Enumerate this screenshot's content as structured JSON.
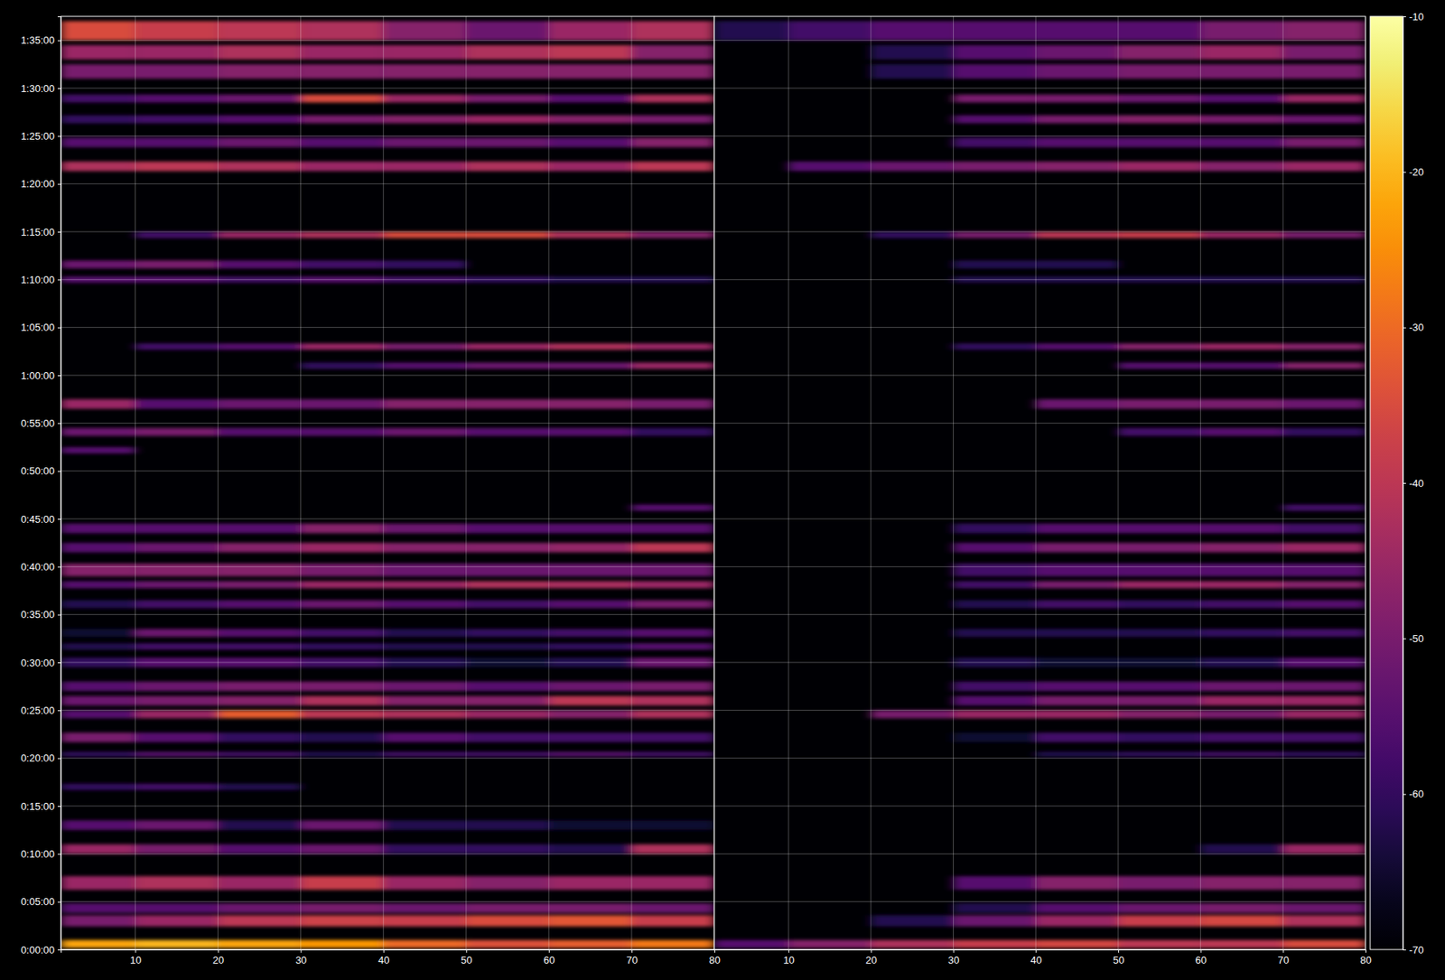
{
  "chart_data": [
    {
      "type": "heatmap",
      "grid": true,
      "xlim": [
        1,
        80
      ],
      "xticks": [
        10,
        20,
        30,
        40,
        50,
        60,
        70,
        80
      ],
      "ylim": [
        0,
        5850
      ],
      "yticks": [
        {
          "value": 0,
          "label": "0:00:00"
        },
        {
          "value": 300,
          "label": "0:05:00"
        },
        {
          "value": 600,
          "label": "0:10:00"
        },
        {
          "value": 900,
          "label": "0:15:00"
        },
        {
          "value": 1200,
          "label": "0:20:00"
        },
        {
          "value": 1500,
          "label": "0:25:00"
        },
        {
          "value": 1800,
          "label": "0:30:00"
        },
        {
          "value": 2100,
          "label": "0:35:00"
        },
        {
          "value": 2400,
          "label": "0:40:00"
        },
        {
          "value": 2700,
          "label": "0:45:00"
        },
        {
          "value": 3000,
          "label": "0:50:00"
        },
        {
          "value": 3300,
          "label": "0:55:00"
        },
        {
          "value": 3600,
          "label": "1:00:00"
        },
        {
          "value": 3900,
          "label": "1:05:00"
        },
        {
          "value": 4200,
          "label": "1:10:00"
        },
        {
          "value": 4500,
          "label": "1:15:00"
        },
        {
          "value": 4800,
          "label": "1:20:00"
        },
        {
          "value": 5100,
          "label": "1:25:00"
        },
        {
          "value": 5400,
          "label": "1:30:00"
        },
        {
          "value": 5700,
          "label": "1:35:00"
        }
      ],
      "x_edges": [
        1,
        10,
        20,
        30,
        40,
        50,
        60,
        70,
        80
      ],
      "rows": [
        {
          "y0": 10,
          "y1": 60,
          "values": [
            -22,
            -20,
            -22,
            -24,
            -30,
            -34,
            -32,
            -28
          ]
        },
        {
          "y0": 145,
          "y1": 215,
          "values": [
            -50,
            -45,
            -40,
            -37,
            -38,
            -35,
            -33,
            -38
          ]
        },
        {
          "y0": 230,
          "y1": 290,
          "values": [
            -55,
            -55,
            -52,
            -50,
            -52,
            -50,
            -50,
            -52
          ]
        },
        {
          "y0": 375,
          "y1": 460,
          "values": [
            -45,
            -42,
            -45,
            -38,
            -45,
            -48,
            -45,
            -45
          ]
        },
        {
          "y0": 600,
          "y1": 660,
          "values": [
            -45,
            -50,
            -55,
            -52,
            -60,
            -60,
            -62,
            -42
          ]
        },
        {
          "y0": 750,
          "y1": 810,
          "values": [
            -55,
            -52,
            -62,
            -52,
            -62,
            -62,
            -65,
            -65
          ]
        },
        {
          "y0": 1000,
          "y1": 1040,
          "values": [
            -60,
            -58,
            -62,
            null,
            null,
            null,
            null,
            null
          ]
        },
        {
          "y0": 1210,
          "y1": 1240,
          "values": [
            -60,
            -55,
            -58,
            -62,
            -58,
            -58,
            -55,
            -58
          ]
        },
        {
          "y0": 1300,
          "y1": 1360,
          "values": [
            -50,
            -55,
            -60,
            -62,
            -55,
            -58,
            -58,
            -58
          ]
        },
        {
          "y0": 1450,
          "y1": 1500,
          "values": [
            -55,
            -45,
            -32,
            -40,
            -42,
            -45,
            -48,
            -42
          ]
        },
        {
          "y0": 1530,
          "y1": 1590,
          "values": [
            -52,
            -50,
            -48,
            -42,
            -48,
            -48,
            -40,
            -42
          ]
        },
        {
          "y0": 1620,
          "y1": 1680,
          "values": [
            -55,
            -52,
            -50,
            -50,
            -52,
            -55,
            -52,
            -50
          ]
        },
        {
          "y0": 1770,
          "y1": 1830,
          "values": [
            -60,
            -55,
            -55,
            -58,
            -62,
            -65,
            -62,
            -52
          ]
        },
        {
          "y0": 1880,
          "y1": 1920,
          "values": [
            -62,
            -58,
            -58,
            -60,
            -62,
            -62,
            -60,
            -55
          ]
        },
        {
          "y0": 1960,
          "y1": 2010,
          "values": [
            -65,
            -52,
            -55,
            -58,
            -62,
            -60,
            -58,
            -55
          ]
        },
        {
          "y0": 2140,
          "y1": 2190,
          "values": [
            -62,
            -58,
            -55,
            -52,
            -55,
            -58,
            -55,
            -50
          ]
        },
        {
          "y0": 2265,
          "y1": 2310,
          "values": [
            -55,
            -52,
            -50,
            -45,
            -45,
            -42,
            -43,
            -45
          ]
        },
        {
          "y0": 2340,
          "y1": 2420,
          "values": [
            -48,
            -48,
            -48,
            -50,
            -52,
            -52,
            -52,
            -52
          ]
        },
        {
          "y0": 2490,
          "y1": 2550,
          "values": [
            -55,
            -52,
            -48,
            -45,
            -48,
            -48,
            -46,
            -40
          ]
        },
        {
          "y0": 2610,
          "y1": 2670,
          "values": [
            -55,
            -55,
            -55,
            -48,
            -52,
            -55,
            -55,
            -55
          ]
        },
        {
          "y0": 2750,
          "y1": 2790,
          "values": [
            null,
            null,
            null,
            null,
            null,
            null,
            null,
            -55
          ]
        },
        {
          "y0": 3110,
          "y1": 3150,
          "values": [
            -55,
            null,
            null,
            null,
            null,
            null,
            null,
            null
          ]
        },
        {
          "y0": 3220,
          "y1": 3270,
          "values": [
            -52,
            -50,
            -55,
            -55,
            -52,
            -55,
            -55,
            -60
          ]
        },
        {
          "y0": 3390,
          "y1": 3450,
          "values": [
            -45,
            -55,
            -52,
            -52,
            -48,
            -48,
            -48,
            -50
          ]
        },
        {
          "y0": 3640,
          "y1": 3680,
          "values": [
            null,
            null,
            null,
            -60,
            -55,
            -52,
            -52,
            -45
          ]
        },
        {
          "y0": 3760,
          "y1": 3800,
          "values": [
            null,
            -58,
            -55,
            -45,
            -50,
            -45,
            -42,
            -45
          ]
        },
        {
          "y0": 4180,
          "y1": 4220,
          "values": [
            -55,
            -55,
            -58,
            -55,
            -58,
            -60,
            -62,
            -62
          ]
        },
        {
          "y0": 4270,
          "y1": 4320,
          "values": [
            -52,
            -50,
            -55,
            -58,
            -60,
            null,
            null,
            null
          ]
        },
        {
          "y0": 4460,
          "y1": 4500,
          "values": [
            null,
            -58,
            -45,
            -42,
            -35,
            -35,
            -42,
            -48
          ]
        },
        {
          "y0": 4880,
          "y1": 4940,
          "values": [
            -42,
            -40,
            -42,
            -45,
            -45,
            -42,
            -45,
            -40
          ]
        },
        {
          "y0": 5030,
          "y1": 5090,
          "values": [
            -55,
            -55,
            -52,
            -55,
            -52,
            -52,
            -55,
            -48
          ]
        },
        {
          "y0": 5180,
          "y1": 5230,
          "values": [
            -60,
            -58,
            -55,
            -50,
            -48,
            -45,
            -48,
            -50
          ]
        },
        {
          "y0": 5310,
          "y1": 5360,
          "values": [
            -58,
            -55,
            -52,
            -35,
            -45,
            -50,
            -55,
            -42
          ]
        },
        {
          "y0": 5460,
          "y1": 5550,
          "values": [
            -50,
            -50,
            -48,
            -48,
            -48,
            -48,
            -48,
            -48
          ]
        },
        {
          "y0": 5580,
          "y1": 5670,
          "values": [
            -45,
            -45,
            -42,
            -45,
            -45,
            -42,
            -40,
            -48
          ]
        },
        {
          "y0": 5700,
          "y1": 5820,
          "values": [
            -35,
            -38,
            -40,
            -42,
            -48,
            -52,
            -45,
            -42
          ]
        }
      ]
    },
    {
      "type": "heatmap",
      "grid": true,
      "tick_labels": "x",
      "xlim": [
        1,
        80
      ],
      "xticks": [
        10,
        20,
        30,
        40,
        50,
        60,
        70,
        80
      ],
      "ylim": [
        0,
        5850
      ],
      "yticks": [
        0,
        300,
        600,
        900,
        1200,
        1500,
        1800,
        2100,
        2400,
        2700,
        3000,
        3300,
        3600,
        3900,
        4200,
        4500,
        4800,
        5100,
        5400,
        5700
      ],
      "x_edges": [
        1,
        10,
        20,
        30,
        40,
        50,
        60,
        70,
        80
      ],
      "rows": [
        {
          "y0": 10,
          "y1": 60,
          "values": [
            -55,
            -48,
            -42,
            -38,
            -36,
            -40,
            -40,
            -35
          ]
        },
        {
          "y0": 145,
          "y1": 215,
          "values": [
            null,
            null,
            -62,
            -52,
            -45,
            -38,
            -36,
            -42
          ]
        },
        {
          "y0": 230,
          "y1": 290,
          "values": [
            null,
            null,
            null,
            -62,
            -55,
            -52,
            -50,
            -52
          ]
        },
        {
          "y0": 375,
          "y1": 460,
          "values": [
            null,
            null,
            null,
            -55,
            -48,
            -50,
            -48,
            -48
          ]
        },
        {
          "y0": 600,
          "y1": 660,
          "values": [
            null,
            null,
            null,
            null,
            null,
            null,
            -62,
            -45
          ]
        },
        {
          "y0": 1210,
          "y1": 1240,
          "values": [
            null,
            null,
            null,
            null,
            -62,
            -60,
            -58,
            -60
          ]
        },
        {
          "y0": 1300,
          "y1": 1360,
          "values": [
            null,
            null,
            null,
            -65,
            -58,
            -60,
            -58,
            -58
          ]
        },
        {
          "y0": 1450,
          "y1": 1500,
          "values": [
            null,
            null,
            -50,
            -45,
            -45,
            -48,
            -50,
            -45
          ]
        },
        {
          "y0": 1530,
          "y1": 1590,
          "values": [
            null,
            null,
            null,
            -55,
            -50,
            -50,
            -45,
            -45
          ]
        },
        {
          "y0": 1620,
          "y1": 1680,
          "values": [
            null,
            null,
            null,
            -58,
            -55,
            -55,
            -52,
            -52
          ]
        },
        {
          "y0": 1770,
          "y1": 1830,
          "values": [
            null,
            null,
            null,
            -62,
            -65,
            -65,
            -62,
            -55
          ]
        },
        {
          "y0": 1960,
          "y1": 2010,
          "values": [
            null,
            null,
            null,
            -62,
            -62,
            -62,
            -60,
            -58
          ]
        },
        {
          "y0": 2140,
          "y1": 2190,
          "values": [
            null,
            null,
            null,
            -62,
            -58,
            -60,
            -58,
            -55
          ]
        },
        {
          "y0": 2265,
          "y1": 2310,
          "values": [
            null,
            null,
            null,
            -58,
            -50,
            -45,
            -45,
            -48
          ]
        },
        {
          "y0": 2340,
          "y1": 2420,
          "values": [
            null,
            null,
            null,
            -58,
            -55,
            -55,
            -55,
            -55
          ]
        },
        {
          "y0": 2490,
          "y1": 2550,
          "values": [
            null,
            null,
            null,
            -55,
            -50,
            -50,
            -48,
            -45
          ]
        },
        {
          "y0": 2610,
          "y1": 2670,
          "values": [
            null,
            null,
            null,
            -60,
            -55,
            -55,
            -55,
            -58
          ]
        },
        {
          "y0": 2750,
          "y1": 2790,
          "values": [
            null,
            null,
            null,
            null,
            null,
            null,
            null,
            -58
          ]
        },
        {
          "y0": 3220,
          "y1": 3270,
          "values": [
            null,
            null,
            null,
            null,
            null,
            -58,
            -55,
            -60
          ]
        },
        {
          "y0": 3390,
          "y1": 3450,
          "values": [
            null,
            null,
            null,
            null,
            -52,
            -50,
            -50,
            -52
          ]
        },
        {
          "y0": 3640,
          "y1": 3680,
          "values": [
            null,
            null,
            null,
            null,
            null,
            -55,
            -55,
            -48
          ]
        },
        {
          "y0": 3760,
          "y1": 3800,
          "values": [
            null,
            null,
            null,
            -60,
            -55,
            -48,
            -45,
            -48
          ]
        },
        {
          "y0": 4180,
          "y1": 4220,
          "values": [
            null,
            null,
            null,
            -62,
            -62,
            -62,
            -62,
            -62
          ]
        },
        {
          "y0": 4270,
          "y1": 4320,
          "values": [
            null,
            null,
            null,
            -62,
            -62,
            null,
            null,
            null
          ]
        },
        {
          "y0": 4460,
          "y1": 4500,
          "values": [
            null,
            null,
            -60,
            -50,
            -40,
            -38,
            -45,
            -50
          ]
        },
        {
          "y0": 4880,
          "y1": 4940,
          "values": [
            null,
            -55,
            -52,
            -50,
            -48,
            -45,
            -48,
            -45
          ]
        },
        {
          "y0": 5030,
          "y1": 5090,
          "values": [
            null,
            null,
            null,
            -58,
            -55,
            -55,
            -55,
            -50
          ]
        },
        {
          "y0": 5180,
          "y1": 5230,
          "values": [
            null,
            null,
            null,
            -55,
            -50,
            -48,
            -50,
            -52
          ]
        },
        {
          "y0": 5310,
          "y1": 5360,
          "values": [
            null,
            null,
            null,
            -50,
            -50,
            -52,
            -55,
            -45
          ]
        },
        {
          "y0": 5460,
          "y1": 5550,
          "values": [
            null,
            null,
            -62,
            -55,
            -52,
            -50,
            -50,
            -50
          ]
        },
        {
          "y0": 5580,
          "y1": 5670,
          "values": [
            null,
            null,
            -62,
            -55,
            -52,
            -48,
            -45,
            -50
          ]
        },
        {
          "y0": 5700,
          "y1": 5820,
          "values": [
            -62,
            -58,
            -55,
            -55,
            -55,
            -55,
            -50,
            -48
          ]
        }
      ],
      "colorbar": {
        "range": [
          -70,
          -10
        ],
        "ticks": [
          -70,
          -60,
          -50,
          -40,
          -30,
          -20,
          -10
        ]
      }
    }
  ]
}
